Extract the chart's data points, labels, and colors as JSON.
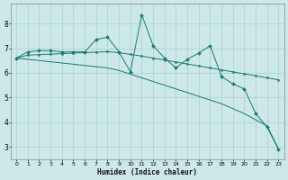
{
  "x": [
    0,
    1,
    2,
    3,
    4,
    5,
    6,
    7,
    8,
    9,
    10,
    11,
    12,
    13,
    14,
    15,
    16,
    17,
    18,
    19,
    20,
    21,
    22,
    23
  ],
  "y_jagged": [
    6.6,
    6.85,
    6.9,
    6.9,
    6.85,
    6.85,
    6.85,
    7.35,
    7.45,
    6.85,
    6.05,
    8.35,
    7.1,
    6.6,
    6.2,
    6.55,
    6.8,
    7.1,
    5.85,
    5.55,
    5.35,
    4.35,
    3.8,
    2.9
  ],
  "y_upper": [
    6.6,
    6.72,
    6.74,
    6.76,
    6.78,
    6.8,
    6.82,
    6.84,
    6.86,
    6.82,
    6.75,
    6.68,
    6.6,
    6.52,
    6.44,
    6.36,
    6.28,
    6.2,
    6.12,
    6.04,
    5.96,
    5.88,
    5.8,
    5.72
  ],
  "y_lower": [
    6.6,
    6.55,
    6.5,
    6.45,
    6.4,
    6.35,
    6.3,
    6.25,
    6.2,
    6.1,
    5.95,
    5.8,
    5.65,
    5.5,
    5.35,
    5.2,
    5.05,
    4.9,
    4.75,
    4.55,
    4.35,
    4.1,
    3.85,
    2.9
  ],
  "color_main": "#1a7a6e",
  "bg_color": "#cce8e8",
  "grid_color": "#aad0d0",
  "xlabel": "Humidex (Indice chaleur)",
  "ylim": [
    2.5,
    8.8
  ],
  "xlim": [
    -0.5,
    23.5
  ],
  "yticks": [
    3,
    4,
    5,
    6,
    7,
    8
  ],
  "xticks": [
    0,
    1,
    2,
    3,
    4,
    5,
    6,
    7,
    8,
    9,
    10,
    11,
    12,
    13,
    14,
    15,
    16,
    17,
    18,
    19,
    20,
    21,
    22,
    23
  ]
}
